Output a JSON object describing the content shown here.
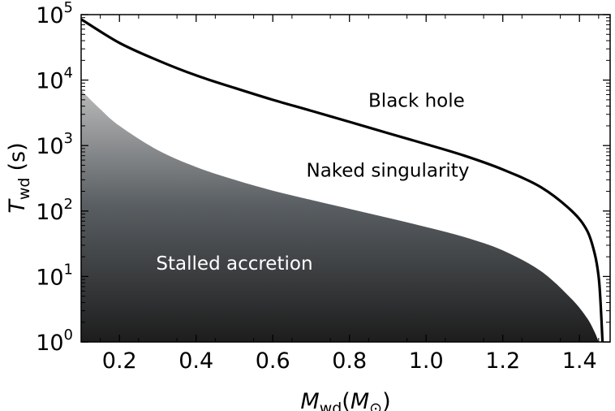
{
  "chart_data": {
    "type": "area",
    "title": "",
    "xlabel": "M_wd(M_⊙)",
    "xlabel_main": "M",
    "xlabel_sub": "wd",
    "xlabel_unit": "M",
    "xlabel_unit_sub": "⊙",
    "ylabel": "T_wd (s)",
    "ylabel_main": "T",
    "ylabel_sub": "wd",
    "ylabel_unit": "(s)",
    "xlim": [
      0.1,
      1.48
    ],
    "ylim": [
      1,
      100000
    ],
    "yscale": "log",
    "grid": false,
    "x_ticks": [
      0.2,
      0.4,
      0.6,
      0.8,
      1.0,
      1.2,
      1.4
    ],
    "x_tick_labels": [
      "0.2",
      "0.4",
      "0.6",
      "0.8",
      "1.0",
      "1.2",
      "1.4"
    ],
    "y_ticks": [
      {
        "base": "10",
        "exp": "0",
        "value": 1
      },
      {
        "base": "10",
        "exp": "1",
        "value": 10
      },
      {
        "base": "10",
        "exp": "2",
        "value": 100
      },
      {
        "base": "10",
        "exp": "3",
        "value": 1000
      },
      {
        "base": "10",
        "exp": "4",
        "value": 10000
      },
      {
        "base": "10",
        "exp": "5",
        "value": 100000
      }
    ],
    "series": [
      {
        "name": "Black hole boundary",
        "style": "line",
        "color": "#000000",
        "x": [
          0.1,
          0.2,
          0.3,
          0.4,
          0.5,
          0.6,
          0.7,
          0.8,
          0.9,
          1.0,
          1.1,
          1.2,
          1.3,
          1.38,
          1.42,
          1.44,
          1.45,
          1.455,
          1.46
        ],
        "y": [
          85000,
          37000,
          20000,
          11800,
          7600,
          5000,
          3400,
          2300,
          1550,
          1050,
          700,
          430,
          230,
          100,
          50,
          22,
          10,
          4,
          1
        ]
      },
      {
        "name": "Stalled accretion boundary",
        "style": "filled-area",
        "fill_top": "#b9b9b9",
        "fill_bottom": "#1c1c1c",
        "x": [
          0.1,
          0.15,
          0.2,
          0.3,
          0.4,
          0.5,
          0.6,
          0.7,
          0.8,
          0.9,
          1.0,
          1.1,
          1.2,
          1.3,
          1.38,
          1.42,
          1.44,
          1.45
        ],
        "y": [
          7000,
          3600,
          2000,
          850,
          470,
          300,
          205,
          148,
          108,
          79,
          57,
          40,
          25,
          12,
          4.5,
          2.3,
          1.4,
          1
        ]
      }
    ],
    "annotations": [
      {
        "text": "Black hole",
        "x": 0.975,
        "y": 4900,
        "color": "#000000"
      },
      {
        "text": "Naked singularity",
        "x": 0.9,
        "y": 420,
        "color": "#000000"
      },
      {
        "text": "Stalled accretion",
        "x": 0.5,
        "y": 16,
        "color": "#ffffff"
      }
    ]
  }
}
